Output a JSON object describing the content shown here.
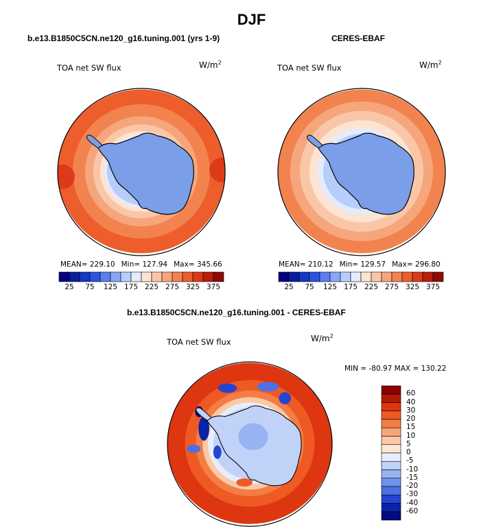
{
  "figure": {
    "season": "DJF",
    "panels": [
      {
        "id": "model",
        "title": "b.e13.B1850C5CN.ne120_g16.tuning.001 (yrs 1-9)",
        "variable": "TOA net SW flux",
        "units_base": "W/m",
        "units_exp": "2",
        "stats": {
          "mean": "MEAN= 229.10",
          "min": "Min= 127.94",
          "max": "Max= 345.66"
        },
        "colorbar_labels": [
          "25",
          "75",
          "125",
          "175",
          "225",
          "275",
          "325",
          "375"
        ]
      },
      {
        "id": "obs",
        "title": "CERES-EBAF",
        "variable": "TOA net SW flux",
        "units_base": "W/m",
        "units_exp": "2",
        "stats": {
          "mean": "MEAN= 210.12",
          "min": "Min= 129.57",
          "max": "Max= 296.80"
        },
        "colorbar_labels": [
          "25",
          "75",
          "125",
          "175",
          "225",
          "275",
          "325",
          "375"
        ]
      },
      {
        "id": "diff",
        "title": "b.e13.B1850C5CN.ne120_g16.tuning.001 - CERES-EBAF",
        "variable": "TOA net SW flux",
        "units_base": "W/m",
        "units_exp": "2",
        "minmax": "MIN = -80.97 MAX = 130.22",
        "colorbar_labels": [
          "60",
          "40",
          "30",
          "20",
          "15",
          "10",
          "5",
          "0",
          "-5",
          "-10",
          "-15",
          "-20",
          "-30",
          "-40",
          "-60"
        ]
      }
    ]
  },
  "colors": {
    "abs_scale": [
      "#05007f",
      "#0a1ea0",
      "#1437c4",
      "#2a55e0",
      "#5a7eef",
      "#8aa6f6",
      "#b8cdfb",
      "#e2ecfd",
      "#fde4d2",
      "#f9c7a8",
      "#f6a67c",
      "#f2834f",
      "#ed5e2c",
      "#dc3b1a",
      "#b8200c",
      "#8c0c04"
    ],
    "diff_scale": [
      "#8c0000",
      "#b31a06",
      "#dd3611",
      "#ef5a24",
      "#f37d45",
      "#f8a47b",
      "#fbc9a6",
      "#fde6d4",
      "#e6eefc",
      "#c0d2f8",
      "#97b3f2",
      "#7093ec",
      "#4a70e6",
      "#2445d2",
      "#0c22ab",
      "#020a7e"
    ],
    "antarctica": "#7b9ee8",
    "coast": "#000000"
  }
}
